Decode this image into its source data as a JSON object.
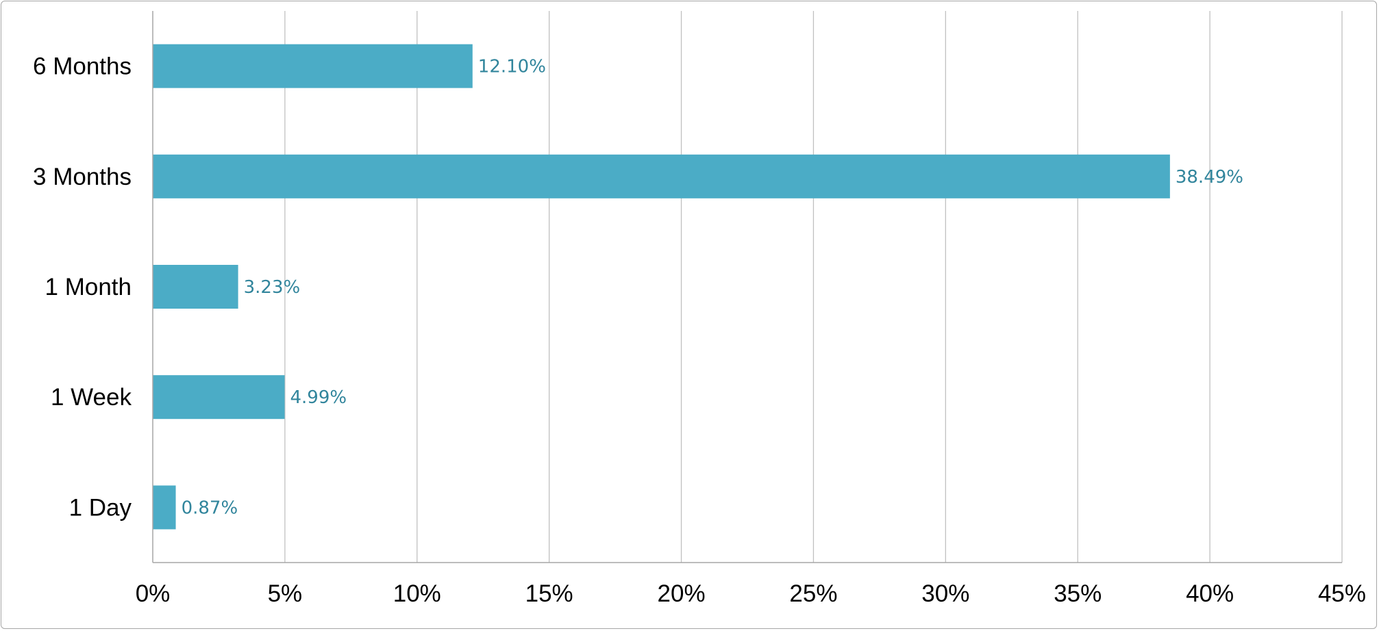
{
  "chart_data": {
    "type": "bar",
    "orientation": "horizontal",
    "categories": [
      "6 Months",
      "3 Months",
      "1 Month",
      "1 Week",
      "1 Day"
    ],
    "values": [
      12.1,
      38.49,
      3.23,
      4.99,
      0.87
    ],
    "data_labels": [
      "12.10%",
      "38.49%",
      "3.23%",
      "4.99%",
      "0.87%"
    ],
    "xlim": [
      0,
      45
    ],
    "x_ticks": [
      0,
      5,
      10,
      15,
      20,
      25,
      30,
      35,
      40,
      45
    ],
    "x_tick_labels": [
      "0%",
      "5%",
      "10%",
      "15%",
      "20%",
      "25%",
      "30%",
      "35%",
      "40%",
      "45%"
    ],
    "grid": "vertical",
    "legend": "none",
    "title": "",
    "xlabel": "",
    "ylabel": "",
    "colors": {
      "bar": "#4BACC6",
      "data_label": "#31859C",
      "grid": "#c0c0c0",
      "axis": "#a6a6a6"
    }
  }
}
